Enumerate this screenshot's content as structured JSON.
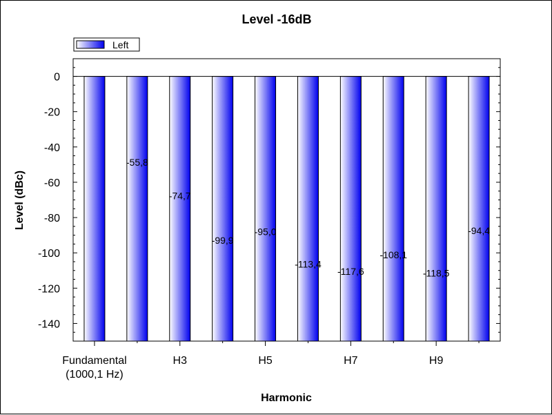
{
  "chart_data": {
    "type": "bar",
    "title": "Level -16dB",
    "xlabel": "Harmonic",
    "ylabel": "Level (dBc)",
    "ylim": [
      -150,
      10
    ],
    "yticks": [
      0,
      -20,
      -40,
      -60,
      -80,
      -100,
      -120,
      -140
    ],
    "ytick_labels": [
      "0",
      "-20",
      "-40",
      "-60",
      "-80",
      "-100",
      "-120",
      "-140"
    ],
    "x_tick_labels": [
      {
        "index": 0,
        "lines": [
          "Fundamental",
          "(1000,1 Hz)"
        ]
      },
      {
        "index": 2,
        "lines": [
          "H3"
        ]
      },
      {
        "index": 4,
        "lines": [
          "H5"
        ]
      },
      {
        "index": 6,
        "lines": [
          "H7"
        ]
      },
      {
        "index": 8,
        "lines": [
          "H9"
        ]
      }
    ],
    "legend_position": "top-left",
    "grid": false,
    "series": [
      {
        "name": "Left",
        "color_dark": "#0000ee",
        "color_light": "#ffffff",
        "values": [
          0,
          -55.8,
          -74.7,
          -99.9,
          -95.0,
          -113.4,
          -117.6,
          -108.1,
          -118.5,
          -94.4
        ],
        "data_labels": [
          "",
          "-55,8",
          "-74,7",
          "-99,9",
          "-95,0",
          "-113,4",
          "-117,6",
          "-108,1",
          "-118,5",
          "-94,4"
        ]
      }
    ]
  }
}
